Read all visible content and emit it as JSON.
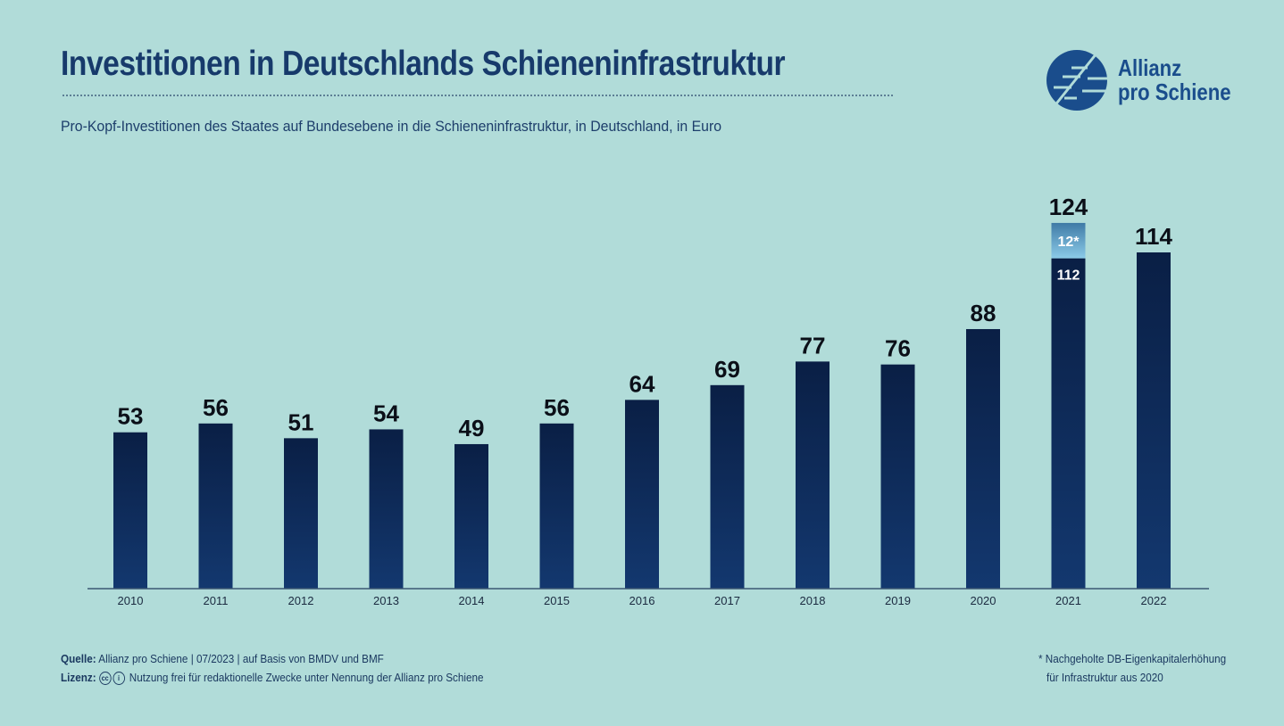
{
  "header": {
    "title": "Investitionen in Deutschlands Schieneninfrastruktur",
    "subtitle": "Pro-Kopf-Investitionen des Staates auf Bundesebene in die Schieneninfrastruktur, in Deutschland, in Euro"
  },
  "logo": {
    "line1": "Allianz",
    "line2": "pro Schiene"
  },
  "footer": {
    "source_label": "Quelle:",
    "source_text": "Allianz pro Schiene | 07/2023 | auf Basis von BMDV und BMF",
    "license_label": "Lizenz:",
    "license_text": "Nutzung frei für redaktionelle Zwecke unter Nennung der Allianz pro Schiene",
    "note_line1": "* Nachgeholte DB-Eigenkapitalerhöhung",
    "note_line2": "für Infrastruktur aus 2020"
  },
  "colors": {
    "background": "#b1dcd9",
    "bar_dark": "#0a1f45",
    "bar_light": "#13386f",
    "extra_segment": "#4f8fbf",
    "title": "#173a6b"
  },
  "chart_data": {
    "type": "bar",
    "categories": [
      "2010",
      "2011",
      "2012",
      "2013",
      "2014",
      "2015",
      "2016",
      "2017",
      "2018",
      "2019",
      "2020",
      "2021",
      "2022"
    ],
    "values": [
      53,
      56,
      51,
      54,
      49,
      56,
      64,
      69,
      77,
      76,
      88,
      124,
      114
    ],
    "stacked_2021": {
      "base": 112,
      "extra": 12,
      "base_label": "112",
      "extra_label": "12*",
      "total_label": "124"
    },
    "ylim": [
      0,
      130
    ],
    "grid": false,
    "xlabel": "",
    "ylabel": ""
  }
}
